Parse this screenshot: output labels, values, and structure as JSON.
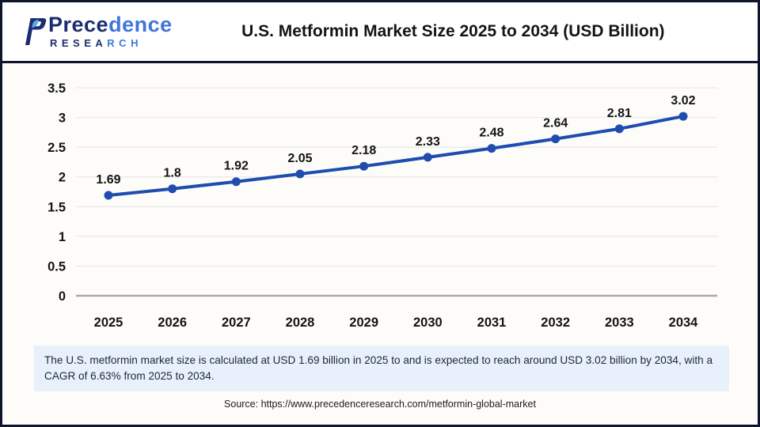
{
  "header": {
    "logo": {
      "brand_dark": "Prece",
      "brand_light": "dence",
      "research_dark": "RESEA",
      "research_light": "RCH"
    },
    "title": "U.S. Metformin Market Size 2025 to 2034 (USD Billion)"
  },
  "chart_data": {
    "type": "line",
    "title": "U.S. Metformin Market Size 2025 to 2034 (USD Billion)",
    "categories": [
      "2025",
      "2026",
      "2027",
      "2028",
      "2029",
      "2030",
      "2031",
      "2032",
      "2033",
      "2034"
    ],
    "values": [
      1.69,
      1.8,
      1.92,
      2.05,
      2.18,
      2.33,
      2.48,
      2.64,
      2.81,
      3.02
    ],
    "value_labels": [
      "1.69",
      "1.8",
      "1.92",
      "2.05",
      "2.18",
      "2.33",
      "2.48",
      "2.64",
      "2.81",
      "3.02"
    ],
    "xlabel": "",
    "ylabel": "",
    "ylim": [
      0,
      3.5
    ],
    "ytick_step": 0.5,
    "ytick_labels": [
      "0",
      "0.5",
      "1",
      "1.5",
      "2",
      "2.5",
      "3",
      "3.5"
    ],
    "grid": true,
    "legend_position": "none",
    "line_color": "#1e4caf",
    "marker_color": "#1e4caf",
    "grid_color": "#e8e8e8",
    "zero_axis_color": "#a9a9a9",
    "tick_label_color": "#141414",
    "data_label_color": "#141414"
  },
  "note": {
    "text": "The U.S. metformin market size is calculated at USD 1.69 billion in 2025 to and is expected to reach around USD 3.02 billion by 2034, with a CAGR of 6.63% from 2025 to 2034."
  },
  "source": {
    "text": "Source: https://www.precedenceresearch.com/metformin-global-market"
  },
  "colors": {
    "frame_navy": "#10152e",
    "note_background": "#e8f1fb",
    "logo_dark_navy": "#1b2d6e",
    "logo_light_blue": "#3f76d9",
    "leaf_blue": "#58a8e8"
  }
}
